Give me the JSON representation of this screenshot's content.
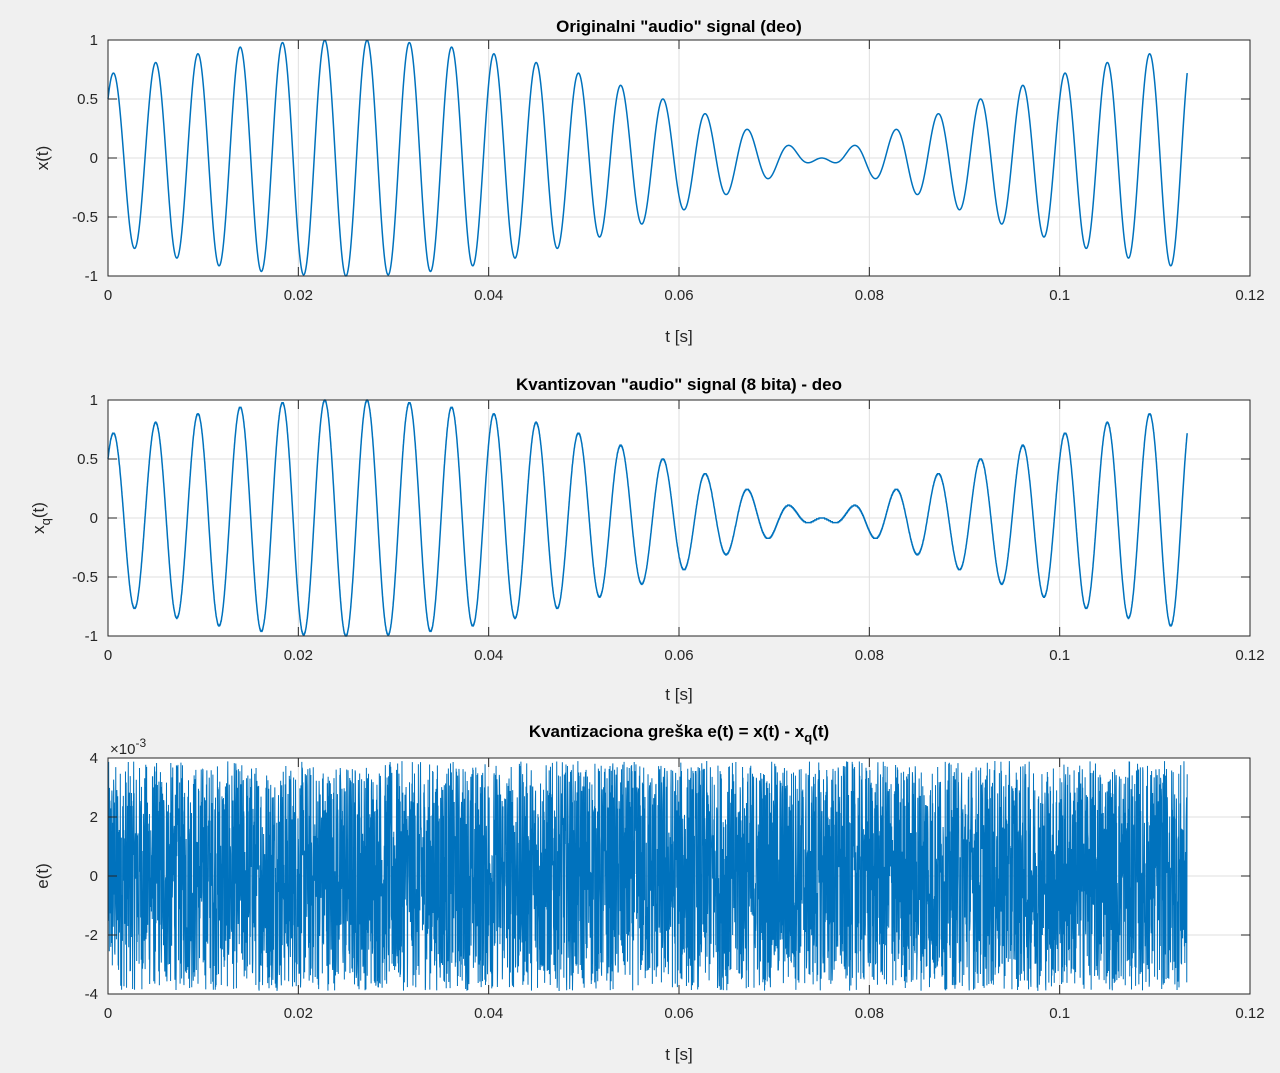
{
  "chart_data": [
    {
      "type": "line",
      "title": "Originalni \"audio\" signal (deo)",
      "xlabel": "t [s]",
      "ylabel": "x(t)",
      "xlim": [
        0,
        0.12
      ],
      "ylim": [
        -1,
        1
      ],
      "xticks": [
        0,
        0.02,
        0.04,
        0.06,
        0.08,
        0.1,
        0.12
      ],
      "xtick_labels": [
        "0",
        "0.02",
        "0.04",
        "0.06",
        "0.08",
        "0.1",
        "0.12"
      ],
      "yticks": [
        -1,
        -0.5,
        0,
        0.5,
        1
      ],
      "ytick_labels": [
        "-1",
        "-0.5",
        "0",
        "0.5",
        "1"
      ],
      "grid": true,
      "line_color": "#0072bd",
      "series": [
        {
          "signal": "sum of sinusoids",
          "components": [
            {
              "amplitude": 0.5,
              "frequency_hz": 230,
              "phase_rad": 0
            },
            {
              "amplitude": 0.5,
              "frequency_hz": 220,
              "phase_rad": 1.5708
            }
          ],
          "t_start": 0,
          "t_end": 0.1134
        }
      ]
    },
    {
      "type": "line",
      "title": "Kvantizovan \"audio\" signal (8 bita) - deo",
      "xlabel": "t [s]",
      "ylabel": "x_q(t)",
      "ylabel_main": "x",
      "ylabel_sub": "q",
      "ylabel_rest": "(t)",
      "xlim": [
        0,
        0.12
      ],
      "ylim": [
        -1,
        1
      ],
      "xticks": [
        0,
        0.02,
        0.04,
        0.06,
        0.08,
        0.1,
        0.12
      ],
      "xtick_labels": [
        "0",
        "0.02",
        "0.04",
        "0.06",
        "0.08",
        "0.1",
        "0.12"
      ],
      "yticks": [
        -1,
        -0.5,
        0,
        0.5,
        1
      ],
      "ytick_labels": [
        "-1",
        "-0.5",
        "0",
        "0.5",
        "1"
      ],
      "grid": true,
      "line_color": "#0072bd",
      "quantization_bits": 8,
      "series": [
        {
          "signal": "quantized sum of sinusoids",
          "t_start": 0,
          "t_end": 0.1134
        }
      ]
    },
    {
      "type": "line",
      "title": "Kvantizaciona greška e(t) = x(t) - x_q(t)",
      "title_main": "Kvantizaciona greška e(t) = x(t) - x",
      "title_sub": "q",
      "title_rest": "(t)",
      "xlabel": "t [s]",
      "ylabel": "e(t)",
      "exponent_label": "×10",
      "exponent_power": "-3",
      "xlim": [
        0,
        0.12
      ],
      "ylim": [
        -0.004,
        0.004
      ],
      "xticks": [
        0,
        0.02,
        0.04,
        0.06,
        0.08,
        0.1,
        0.12
      ],
      "xtick_labels": [
        "0",
        "0.02",
        "0.04",
        "0.06",
        "0.08",
        "0.1",
        "0.12"
      ],
      "yticks": [
        -0.004,
        -0.002,
        0,
        0.002,
        0.004
      ],
      "ytick_labels": [
        "-4",
        "-2",
        "0",
        "2",
        "4"
      ],
      "grid": true,
      "line_color": "#0072bd",
      "series": [
        {
          "signal": "quantization error (approx. uniform noise)",
          "range": [
            -0.0039,
            0.0039
          ],
          "t_start": 0,
          "t_end": 0.1134
        }
      ]
    }
  ]
}
